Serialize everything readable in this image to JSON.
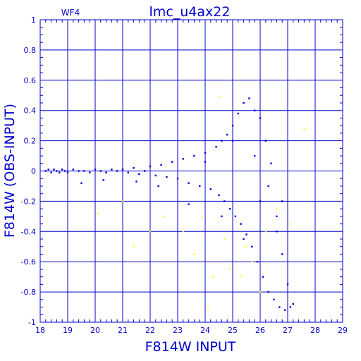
{
  "chart_data": {
    "type": "scatter",
    "title": "lmc_u4ax22",
    "corner_label": "WF4",
    "xlabel": "F814W INPUT",
    "ylabel": "F814W (OBS-INPUT)",
    "xlim": [
      18,
      29
    ],
    "ylim": [
      -1,
      1
    ],
    "xticks": [
      "18",
      "19",
      "20",
      "21",
      "22",
      "23",
      "24",
      "25",
      "26",
      "27",
      "28",
      "29"
    ],
    "yticks": [
      "1",
      "0.8",
      "0.6",
      "0.4",
      "0.2",
      "0",
      "-0.2",
      "-0.4",
      "-0.6",
      "-0.8",
      "-1"
    ],
    "grid": true,
    "colors": {
      "frame": "#0000cc",
      "main_points": "#0000dd",
      "outlier_points": "#ffff00"
    },
    "series": [
      {
        "color": "#0000dd",
        "x": [
          18.2,
          18.3,
          18.4,
          18.5,
          18.6,
          18.7,
          18.8,
          18.9,
          19.0,
          19.2,
          19.4,
          19.6,
          19.8,
          20.0,
          20.2,
          20.4,
          20.6,
          20.8,
          21.0,
          21.2,
          21.4,
          21.6,
          21.8,
          22.0,
          22.2,
          22.4,
          22.6,
          22.8,
          23.0,
          23.2,
          23.4,
          23.6,
          23.8,
          24.0,
          24.2,
          24.4,
          24.5,
          24.6,
          24.7,
          24.8,
          24.9,
          25.0,
          25.1,
          25.2,
          25.3,
          25.4,
          25.5,
          25.6,
          25.7,
          25.8,
          25.9,
          26.0,
          26.1,
          26.2,
          26.3,
          26.4,
          26.5,
          26.6,
          26.7,
          26.8,
          26.9,
          27.0,
          27.1,
          19.5,
          20.3,
          21.5,
          22.3,
          23.4,
          24.0,
          24.6,
          25.0,
          25.4,
          25.8,
          26.0,
          26.3,
          26.6,
          26.8,
          27.2
        ],
        "y": [
          0.0,
          0.01,
          -0.01,
          0.01,
          0.0,
          -0.01,
          0.01,
          0.0,
          -0.01,
          0.01,
          0.0,
          0.0,
          -0.01,
          0.01,
          0.0,
          -0.01,
          0.01,
          0.0,
          0.01,
          -0.01,
          0.02,
          -0.02,
          0.0,
          0.03,
          -0.03,
          0.04,
          -0.04,
          0.06,
          -0.05,
          0.08,
          -0.08,
          0.1,
          -0.1,
          0.12,
          -0.12,
          0.16,
          -0.16,
          0.2,
          -0.2,
          0.24,
          -0.25,
          0.3,
          -0.3,
          0.38,
          -0.35,
          0.45,
          -0.42,
          0.48,
          -0.5,
          0.4,
          -0.6,
          0.35,
          -0.7,
          0.2,
          -0.8,
          0.05,
          -0.85,
          -0.3,
          -0.9,
          -0.55,
          -0.92,
          -0.75,
          -0.9,
          -0.08,
          -0.06,
          -0.07,
          -0.1,
          -0.22,
          0.06,
          -0.3,
          0.2,
          -0.45,
          0.1,
          -0.2,
          -0.1,
          -0.4,
          -0.2,
          -0.88
        ]
      },
      {
        "color": "#ffff00",
        "x": [
          20.1,
          21.0,
          21.4,
          22.0,
          22.5,
          23.2,
          23.6,
          23.9,
          24.1,
          24.3,
          24.5,
          24.7,
          24.9,
          25.1,
          25.3,
          25.5,
          25.7,
          26.0,
          26.2,
          26.6,
          27.1,
          27.6
        ],
        "y": [
          -0.28,
          -0.2,
          -0.5,
          -0.4,
          -0.3,
          -0.4,
          -0.55,
          -0.3,
          -0.9,
          -0.7,
          0.49,
          -0.45,
          -0.65,
          -0.3,
          -0.7,
          -0.5,
          -0.6,
          -0.8,
          -0.4,
          -0.25,
          -0.35,
          0.28
        ]
      }
    ]
  }
}
